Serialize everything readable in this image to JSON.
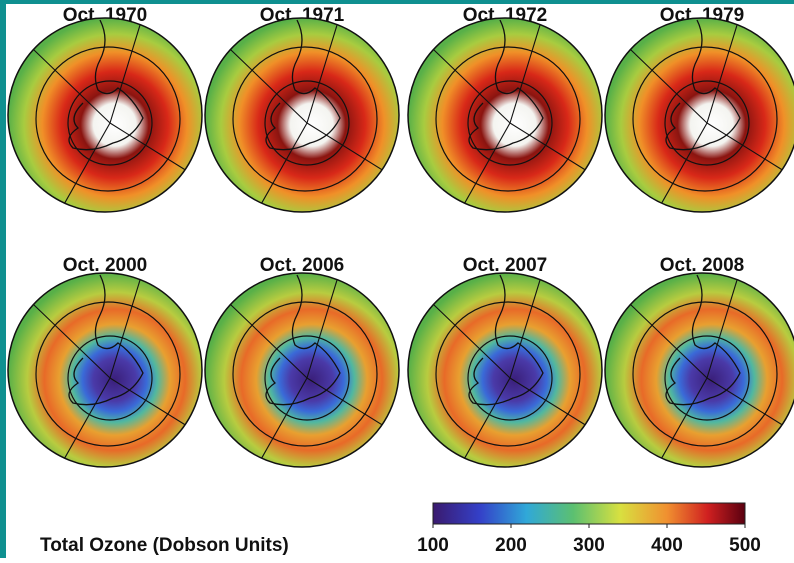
{
  "panels": [
    {
      "title": "Oct. 1970"
    },
    {
      "title": "Oct. 1971"
    },
    {
      "title": "Oct. 1972"
    },
    {
      "title": "Oct. 1979"
    },
    {
      "title": "Oct. 2000"
    },
    {
      "title": "Oct. 2006"
    },
    {
      "title": "Oct. 2007"
    },
    {
      "title": "Oct. 2008"
    }
  ],
  "colorbar": {
    "label": "Total Ozone (Dobson Units)",
    "lim": [
      100,
      500
    ],
    "ticks": [
      100,
      200,
      300,
      400,
      500
    ]
  }
}
